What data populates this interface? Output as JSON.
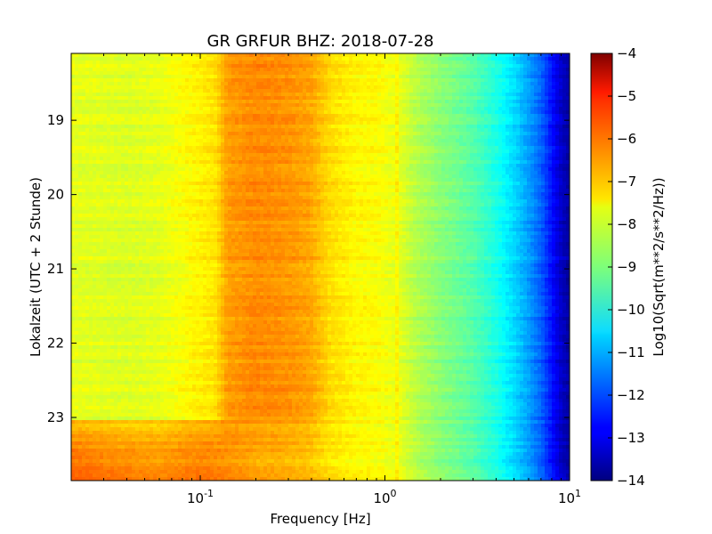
{
  "chart_data": {
    "type": "heatmap",
    "title": "GR GRFUR BHZ: 2018-07-28",
    "xlabel": "Frequency [Hz]",
    "ylabel": "Lokalzeit (UTC + 2 Stunde)",
    "x_scale": "log",
    "xlim": [
      0.02,
      10
    ],
    "x_ticks": [
      {
        "value": 0.1,
        "base": "10",
        "exp": "-1"
      },
      {
        "value": 1,
        "base": "10",
        "exp": "0"
      },
      {
        "value": 10,
        "base": "10",
        "exp": "1"
      }
    ],
    "ylim": [
      18.1,
      23.85
    ],
    "y_inverted": true,
    "y_ticks": [
      {
        "value": 19,
        "label": "19"
      },
      {
        "value": 20,
        "label": "20"
      },
      {
        "value": 21,
        "label": "21"
      },
      {
        "value": 22,
        "label": "22"
      },
      {
        "value": 23,
        "label": "23"
      }
    ],
    "colormap": "jet",
    "colorbar": {
      "label": "Log10(Sqrt(m**2/s**2/Hz))",
      "range": [
        -14,
        -4
      ],
      "ticks": [
        {
          "value": -4,
          "label": "−4"
        },
        {
          "value": -5,
          "label": "−5"
        },
        {
          "value": -6,
          "label": "−6"
        },
        {
          "value": -7,
          "label": "−7"
        },
        {
          "value": -8,
          "label": "−8"
        },
        {
          "value": -9,
          "label": "−9"
        },
        {
          "value": -10,
          "label": "−10"
        },
        {
          "value": -11,
          "label": "−11"
        },
        {
          "value": -12,
          "label": "−12"
        },
        {
          "value": -13,
          "label": "−13"
        },
        {
          "value": -14,
          "label": "−14"
        }
      ]
    },
    "spectrum_profile": {
      "frequencies": [
        0.02,
        0.04,
        0.06,
        0.085,
        0.12,
        0.14,
        0.2,
        0.3,
        0.4,
        0.5,
        0.7,
        0.9,
        1.0,
        1.2,
        1.5,
        2.0,
        3.0,
        4.0,
        5.0,
        6.0,
        7.0,
        8.0,
        9.0,
        10.0
      ],
      "values": [
        -8.0,
        -8.1,
        -8.0,
        -7.75,
        -7.5,
        -6.8,
        -6.6,
        -6.7,
        -6.9,
        -7.4,
        -7.7,
        -7.75,
        -7.85,
        -8.0,
        -8.5,
        -8.9,
        -9.4,
        -10.0,
        -10.6,
        -11.2,
        -11.8,
        -12.6,
        -13.3,
        -13.7
      ]
    },
    "evening_segment": {
      "start_hour": 23.05,
      "frequency_max": 0.9,
      "values_at": [
        0.02,
        0.04,
        0.06,
        0.1,
        0.13,
        0.15,
        0.2,
        0.3,
        0.4,
        0.5,
        0.7,
        0.9
      ],
      "values": [
        -6.3,
        -6.6,
        -6.7,
        -6.5,
        -6.6,
        -6.7,
        -6.9,
        -7.0,
        -7.2,
        -7.5,
        -7.7,
        -7.8
      ]
    }
  }
}
